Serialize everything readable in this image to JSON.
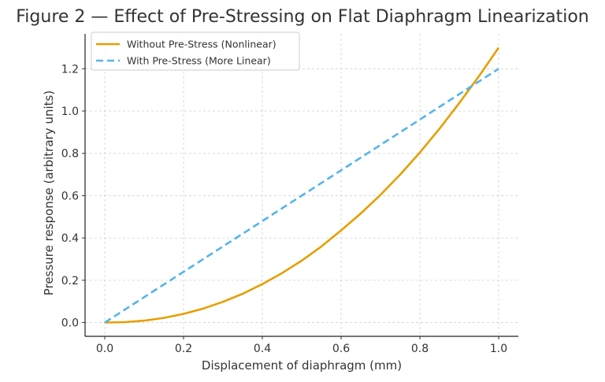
{
  "chart_data": {
    "type": "line",
    "title": "Figure 2 — Effect of Pre-Stressing on Flat Diaphragm Linearization",
    "xlabel": "Displacement of diaphragm (mm)",
    "ylabel": "Pressure response (arbitrary units)",
    "xlim": [
      -0.05,
      1.05
    ],
    "ylim": [
      -0.065,
      1.365
    ],
    "xticks": [
      0.0,
      0.2,
      0.4,
      0.6,
      0.8,
      1.0
    ],
    "xtick_labels": [
      "0.0",
      "0.2",
      "0.4",
      "0.6",
      "0.8",
      "1.0"
    ],
    "yticks": [
      0.0,
      0.2,
      0.4,
      0.6,
      0.8,
      1.0,
      1.2
    ],
    "ytick_labels": [
      "0.0",
      "0.2",
      "0.4",
      "0.6",
      "0.8",
      "1.0",
      "1.2"
    ],
    "grid": true,
    "legend_position": "top-left",
    "x": [
      0.0,
      0.05,
      0.1,
      0.15,
      0.2,
      0.25,
      0.3,
      0.35,
      0.4,
      0.45,
      0.5,
      0.55,
      0.6,
      0.65,
      0.7,
      0.75,
      0.8,
      0.85,
      0.9,
      0.95,
      1.0
    ],
    "series": [
      {
        "name": "Without Pre-Stress (Nonlinear)",
        "color": "#E69F00",
        "style": "solid",
        "values": [
          0.0,
          0.002,
          0.009,
          0.022,
          0.041,
          0.066,
          0.098,
          0.136,
          0.182,
          0.234,
          0.293,
          0.36,
          0.436,
          0.516,
          0.604,
          0.7,
          0.804,
          0.917,
          1.038,
          1.165,
          1.3
        ]
      },
      {
        "name": "With Pre-Stress (More Linear)",
        "color": "#56B4E9",
        "style": "dashed",
        "values": [
          0.0,
          0.06,
          0.12,
          0.18,
          0.24,
          0.3,
          0.36,
          0.42,
          0.48,
          0.54,
          0.6,
          0.66,
          0.72,
          0.78,
          0.84,
          0.9,
          0.96,
          1.02,
          1.08,
          1.14,
          1.2
        ]
      }
    ]
  }
}
